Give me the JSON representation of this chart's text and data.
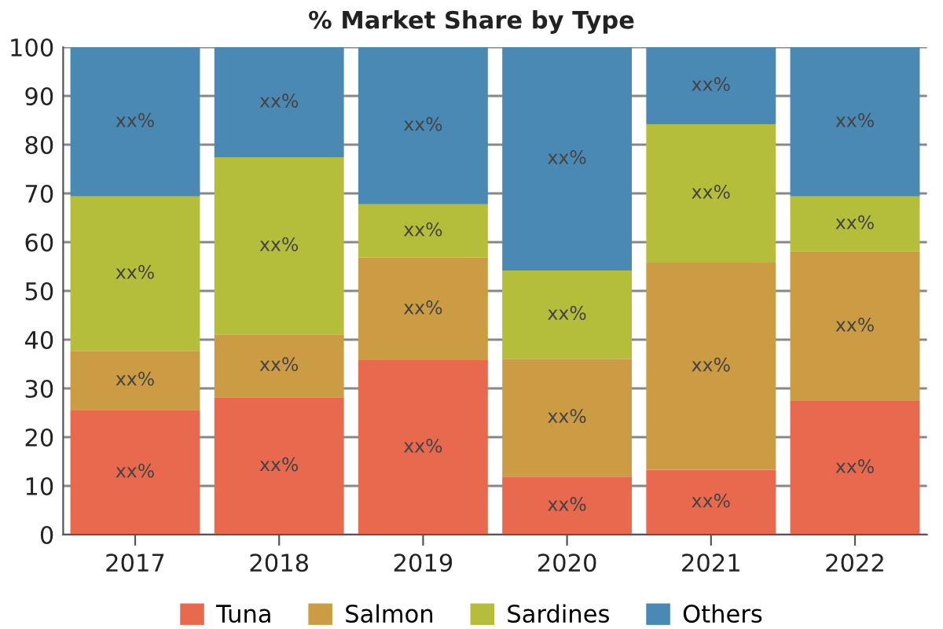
{
  "chart_data": {
    "type": "bar",
    "title": "% Market Share by Type",
    "stacked": true,
    "categories": [
      "2017",
      "2018",
      "2019",
      "2020",
      "2021",
      "2022"
    ],
    "series": [
      {
        "name": "Tuna",
        "color": "#e8694e",
        "values": [
          25.6,
          28.2,
          35.8,
          11.9,
          13.3,
          27.4
        ],
        "value_labels": [
          "xx%",
          "xx%",
          "xx%",
          "xx%",
          "xx%",
          "xx%"
        ]
      },
      {
        "name": "Salmon",
        "color": "#cc9c45",
        "values": [
          12.1,
          12.9,
          21.0,
          24.2,
          42.5,
          30.7
        ],
        "value_labels": [
          "xx%",
          "xx%",
          "xx%",
          "xx%",
          "xx%",
          "xx%"
        ]
      },
      {
        "name": "Sardines",
        "color": "#b5be3a",
        "values": [
          31.7,
          36.3,
          11.0,
          18.1,
          28.4,
          11.3
        ],
        "value_labels": [
          "xx%",
          "xx%",
          "xx%",
          "xx%",
          "xx%",
          "xx%"
        ]
      },
      {
        "name": "Others",
        "color": "#4a89b4",
        "values": [
          30.6,
          22.6,
          32.2,
          45.8,
          15.8,
          30.6
        ],
        "value_labels": [
          "xx%",
          "xx%",
          "xx%",
          "xx%",
          "xx%",
          "xx%"
        ]
      }
    ],
    "ylim": [
      0,
      100
    ],
    "yticks": [
      0,
      10,
      20,
      30,
      40,
      50,
      60,
      70,
      80,
      90,
      100
    ],
    "grid": "y",
    "legend": "bottom"
  }
}
